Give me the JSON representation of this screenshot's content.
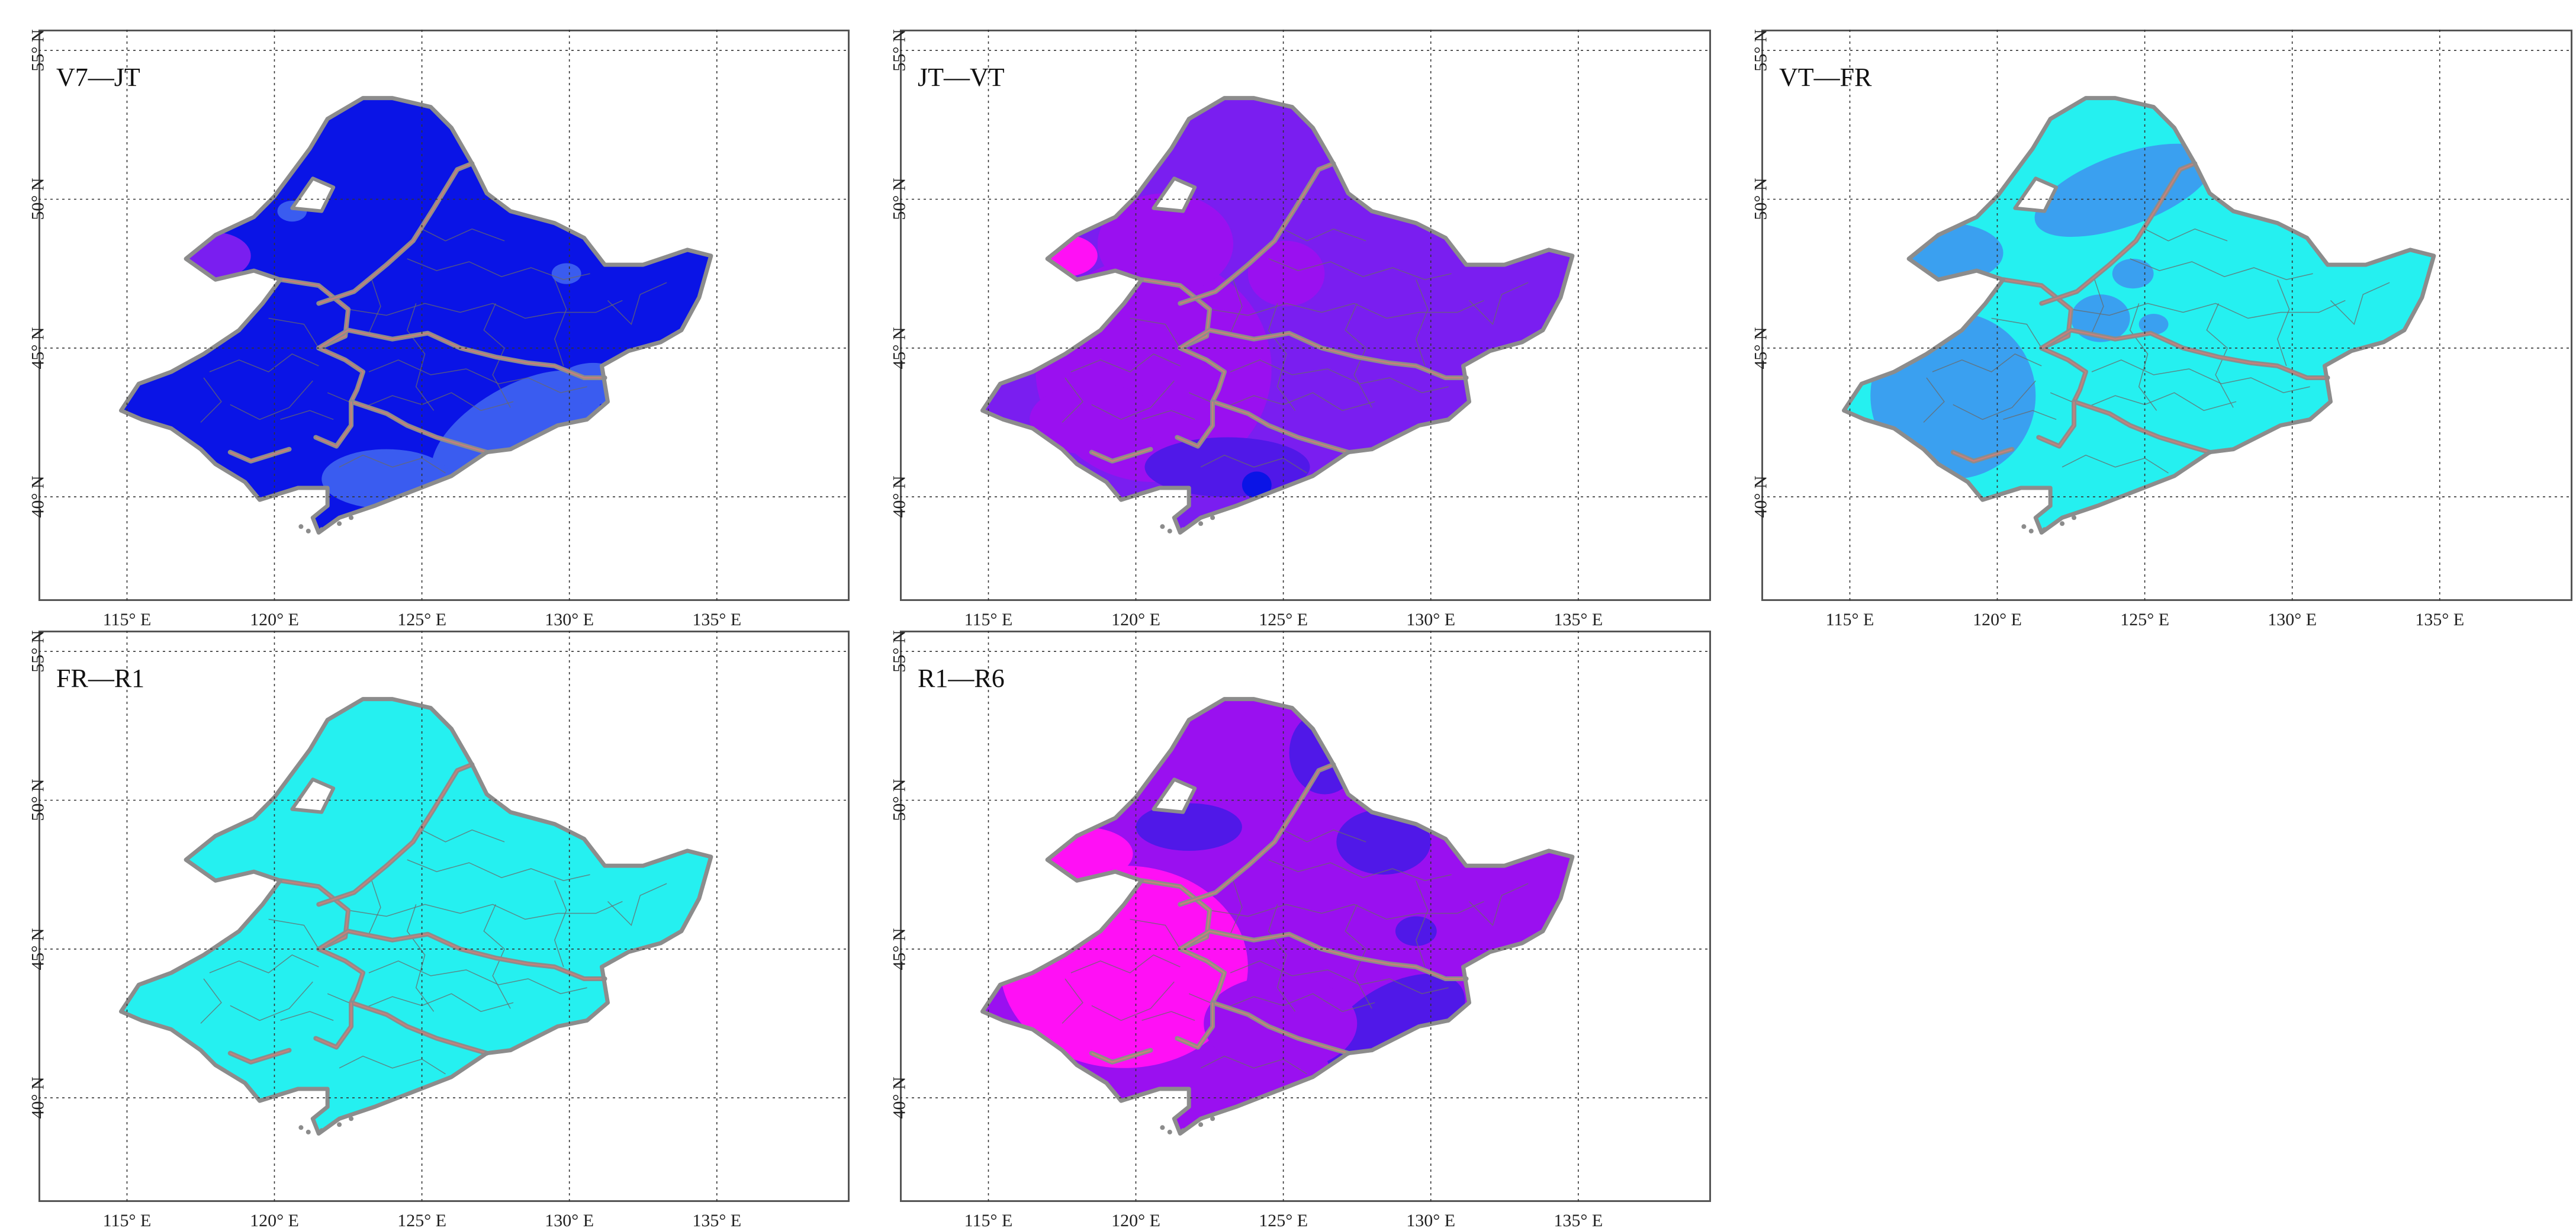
{
  "figure": {
    "lon_ticks": [
      115,
      120,
      125,
      130,
      135
    ],
    "lat_ticks": [
      40,
      45,
      50,
      55
    ],
    "lon_range": [
      112.0,
      139.5
    ],
    "lat_range": [
      36.5,
      55.7
    ],
    "lon_tick_labels": [
      "115° E",
      "120° E",
      "125° E",
      "130° E",
      "135° E"
    ],
    "lat_tick_labels": [
      "40° N",
      "45° N",
      "50° N",
      "55° N"
    ]
  },
  "colors": {
    "blue": "#0a14e6",
    "royal_blue": "#3a5cf0",
    "violet": "#7a1ef0",
    "purple": "#9a10f0",
    "magenta": "#ff10f5",
    "indigo": "#5018e8",
    "cyan": "#25f0f0",
    "sky_blue": "#3aa0f0",
    "white": "#ffffff",
    "outline": "#8c8c8c",
    "province_line": "#c8807a",
    "county_line": "#6a6a6a",
    "grid": "#333333"
  },
  "panels": [
    {
      "label": "V7—JT",
      "base_color": "blue"
    },
    {
      "label": "JT—VT",
      "base_color": "violet"
    },
    {
      "label": "VT—FR",
      "base_color": "cyan"
    },
    {
      "label": "FR—R1",
      "base_color": "cyan"
    },
    {
      "label": "R1—R6",
      "base_color": "purple"
    }
  ]
}
